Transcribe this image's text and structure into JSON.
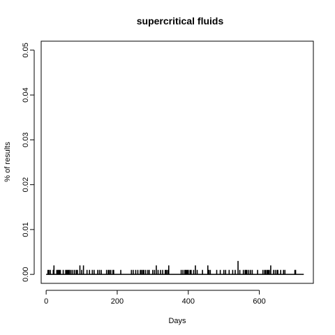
{
  "chart_data": {
    "type": "bar",
    "title": "supercritical fluids",
    "xlabel": "Days",
    "ylabel": "% of results",
    "xlim": [
      -14,
      752
    ],
    "ylim": [
      -0.002,
      0.052
    ],
    "xticks": [
      0,
      200,
      400,
      600
    ],
    "yticks": [
      0.0,
      0.01,
      0.02,
      0.03,
      0.04,
      0.05
    ],
    "ytick_labels": [
      "0.00",
      "0.01",
      "0.02",
      "0.03",
      "0.04",
      "0.05"
    ],
    "baseline": {
      "x_start": 0,
      "x_end": 725,
      "y": 0
    },
    "series": [
      {
        "x": [
          5,
          8,
          12,
          20,
          22,
          30,
          33,
          35,
          38,
          40,
          48,
          55,
          58,
          61,
          64,
          66,
          70,
          75,
          80,
          85,
          88,
          95,
          100,
          105,
          115,
          122,
          130,
          135,
          145,
          150,
          155,
          170,
          175,
          178,
          182,
          188,
          190,
          210,
          240,
          245,
          252,
          258,
          265,
          268,
          272,
          275,
          280,
          286,
          290,
          300,
          305,
          310,
          315,
          322,
          328,
          335,
          338,
          342,
          345,
          380,
          385,
          390,
          392,
          395,
          398,
          400,
          405,
          408,
          415,
          420,
          425,
          440,
          455,
          458,
          462,
          480,
          490,
          500,
          505,
          515,
          525,
          532,
          540,
          545,
          555,
          560,
          562,
          565,
          570,
          575,
          580,
          595,
          610,
          615,
          618,
          622,
          625,
          628,
          632,
          640,
          645,
          650,
          652,
          660,
          668,
          672,
          700,
          702
        ],
        "values": [
          0.001,
          0.001,
          0.001,
          0.001,
          0.002,
          0.001,
          0.001,
          0.001,
          0.001,
          0.001,
          0.001,
          0.001,
          0.001,
          0.001,
          0.001,
          0.001,
          0.001,
          0.001,
          0.001,
          0.001,
          0.001,
          0.002,
          0.001,
          0.002,
          0.001,
          0.001,
          0.001,
          0.001,
          0.001,
          0.001,
          0.001,
          0.001,
          0.001,
          0.001,
          0.001,
          0.001,
          0.001,
          0.001,
          0.001,
          0.001,
          0.001,
          0.001,
          0.001,
          0.001,
          0.001,
          0.001,
          0.001,
          0.001,
          0.001,
          0.001,
          0.001,
          0.002,
          0.001,
          0.001,
          0.001,
          0.001,
          0.001,
          0.001,
          0.002,
          0.001,
          0.001,
          0.001,
          0.001,
          0.001,
          0.001,
          0.001,
          0.001,
          0.001,
          0.001,
          0.002,
          0.001,
          0.001,
          0.002,
          0.001,
          0.001,
          0.001,
          0.001,
          0.001,
          0.001,
          0.001,
          0.001,
          0.001,
          0.003,
          0.001,
          0.001,
          0.001,
          0.001,
          0.001,
          0.001,
          0.001,
          0.001,
          0.001,
          0.001,
          0.001,
          0.001,
          0.001,
          0.001,
          0.001,
          0.002,
          0.001,
          0.001,
          0.001,
          0.001,
          0.001,
          0.001,
          0.001,
          0.001,
          0.001
        ]
      }
    ]
  }
}
